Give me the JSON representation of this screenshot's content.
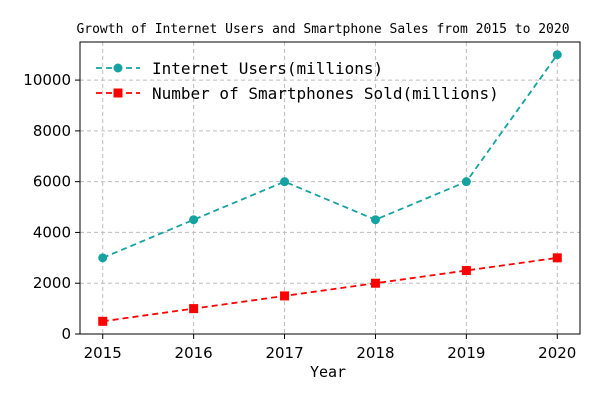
{
  "chart_data": {
    "type": "line",
    "title": "Growth of Internet Users and Smartphone Sales from 2015 to 2020",
    "xlabel": "Year",
    "ylabel": "",
    "x": [
      2015,
      2016,
      2017,
      2018,
      2019,
      2020
    ],
    "xticks": [
      "2015",
      "2016",
      "2017",
      "2018",
      "2019",
      "2020"
    ],
    "yticks": [
      0,
      2000,
      4000,
      6000,
      8000,
      10000
    ],
    "xlim": [
      2014.75,
      2020.25
    ],
    "ylim": [
      0,
      11500
    ],
    "grid": true,
    "legend_position": "top-left",
    "series": [
      {
        "name": "Internet Users(millions)",
        "values": [
          3000,
          4500,
          6000,
          4500,
          6000,
          11000
        ],
        "color": "#17a2a2",
        "marker": "circle",
        "linestyle": "dashed"
      },
      {
        "name": "Number of Smartphones Sold(millions)",
        "values": [
          500,
          1000,
          1500,
          2000,
          2500,
          3000
        ],
        "color": "#ff0000",
        "marker": "square",
        "linestyle": "dashed"
      }
    ]
  }
}
